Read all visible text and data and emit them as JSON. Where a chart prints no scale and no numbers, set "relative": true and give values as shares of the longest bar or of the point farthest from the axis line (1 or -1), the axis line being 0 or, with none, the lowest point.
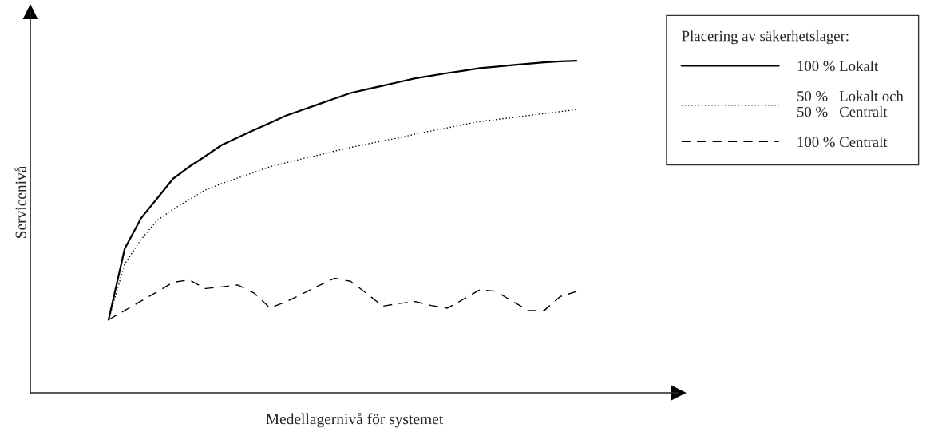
{
  "chart_data": {
    "type": "line",
    "relative": true,
    "xlabel": "Medellagernivå för systemet",
    "ylabel": "Servicenivå",
    "legend_title": "Placering av säkerhetslager:",
    "legend": "top right",
    "tick_labels": false,
    "categories": [
      null,
      null,
      null,
      null,
      null,
      null,
      null,
      null,
      null,
      null,
      null,
      null,
      null,
      null,
      null,
      null,
      null,
      null,
      null,
      null,
      null,
      null,
      null,
      null,
      null,
      null,
      null,
      null,
      null,
      null
    ],
    "series": [
      {
        "name": "100 % Lokalt",
        "color": "#000000",
        "line_style": "solid",
        "values": [
          0.22,
          0.434,
          0.525,
          0.585,
          0.645,
          0.681,
          0.713,
          0.746,
          0.769,
          0.791,
          0.813,
          0.835,
          0.852,
          0.869,
          0.886,
          0.903,
          0.914,
          0.925,
          0.936,
          0.947,
          0.955,
          0.963,
          0.97,
          0.978,
          0.982,
          0.987,
          0.991,
          0.995,
          0.998,
          1.0
        ]
      },
      {
        "name": "50 %   Lokalt och\n50 %   Centralt",
        "color": "#000000",
        "line_style": "dotted",
        "values": [
          0.22,
          0.388,
          0.461,
          0.519,
          0.553,
          0.582,
          0.611,
          0.63,
          0.647,
          0.664,
          0.681,
          0.693,
          0.705,
          0.716,
          0.728,
          0.739,
          0.749,
          0.759,
          0.768,
          0.779,
          0.789,
          0.798,
          0.808,
          0.817,
          0.823,
          0.829,
          0.835,
          0.841,
          0.847,
          0.853
        ]
      },
      {
        "name": "100 % Centralt",
        "color": "#000000",
        "line_style": "dashed",
        "values": [
          0.22,
          0.248,
          0.276,
          0.304,
          0.333,
          0.34,
          0.314,
          0.319,
          0.325,
          0.301,
          0.256,
          0.274,
          0.298,
          0.322,
          0.345,
          0.336,
          0.299,
          0.261,
          0.269,
          0.275,
          0.263,
          0.255,
          0.282,
          0.31,
          0.306,
          0.277,
          0.248,
          0.248,
          0.29,
          0.305
        ]
      }
    ]
  }
}
